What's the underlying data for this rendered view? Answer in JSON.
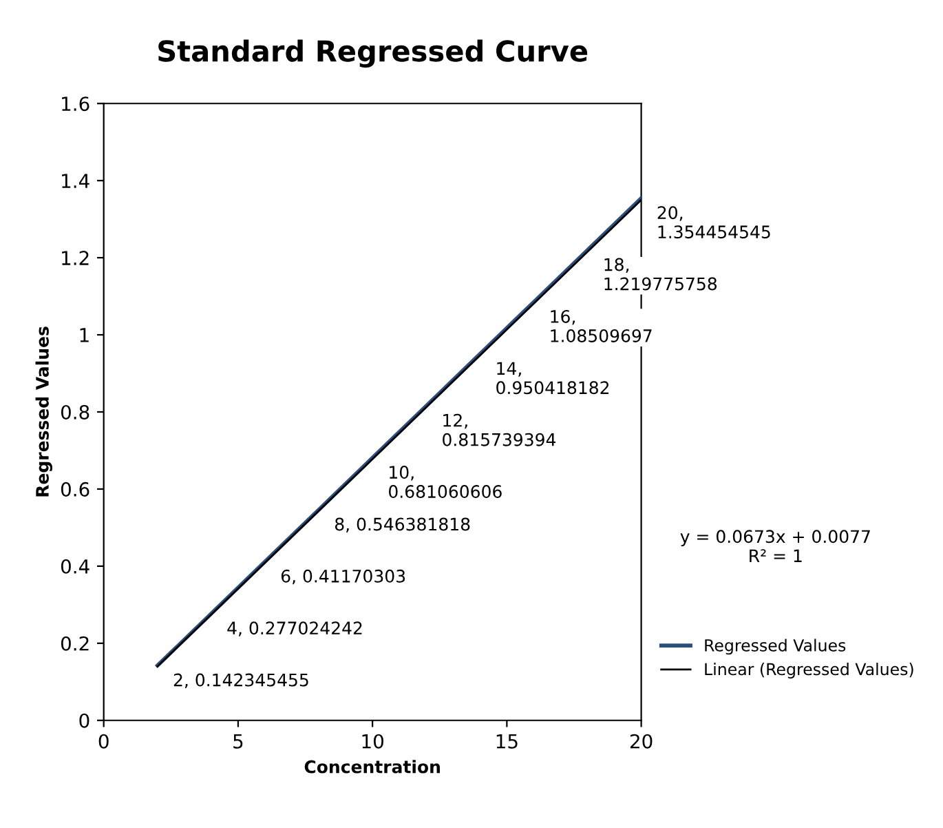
{
  "chart_data": {
    "type": "line",
    "title": "Standard Regressed Curve",
    "xlabel": "Concentration",
    "ylabel": "Regressed Values",
    "xlim": [
      0,
      20
    ],
    "xticks": [
      0,
      5,
      10,
      15,
      20
    ],
    "ylim": [
      0,
      1.6
    ],
    "yticks": [
      0,
      0.2,
      0.4,
      0.6,
      0.8,
      1,
      1.2,
      1.4,
      1.6
    ],
    "grid": false,
    "legend": "right",
    "marker": "none",
    "line_style": "solid",
    "series": [
      {
        "name": "Regressed Values",
        "color": "#2c4f7c",
        "x": [
          2,
          4,
          6,
          8,
          10,
          12,
          14,
          16,
          18,
          20
        ],
        "values": [
          0.142345455,
          0.277024242,
          0.41170303,
          0.546381818,
          0.681060606,
          0.815739394,
          0.950418182,
          1.08509697,
          1.219775758,
          1.354454545
        ],
        "value_labels": [
          "2, 0.142345455",
          "4, 0.277024242",
          "6, 0.41170303",
          "8, 0.546381818",
          "10, 0.681060606",
          "12, 0.815739394",
          "14, 0.950418182",
          "16, 1.08509697",
          "18, 1.219775758",
          "20, 1.354454545"
        ]
      },
      {
        "name": "Linear (Regressed Values)",
        "color": "#000000",
        "x": [
          2,
          20
        ],
        "values": [
          0.14,
          1.35
        ]
      }
    ],
    "annotations": [
      "y = 0.0673x + 0.0077\nR² = 1"
    ]
  }
}
